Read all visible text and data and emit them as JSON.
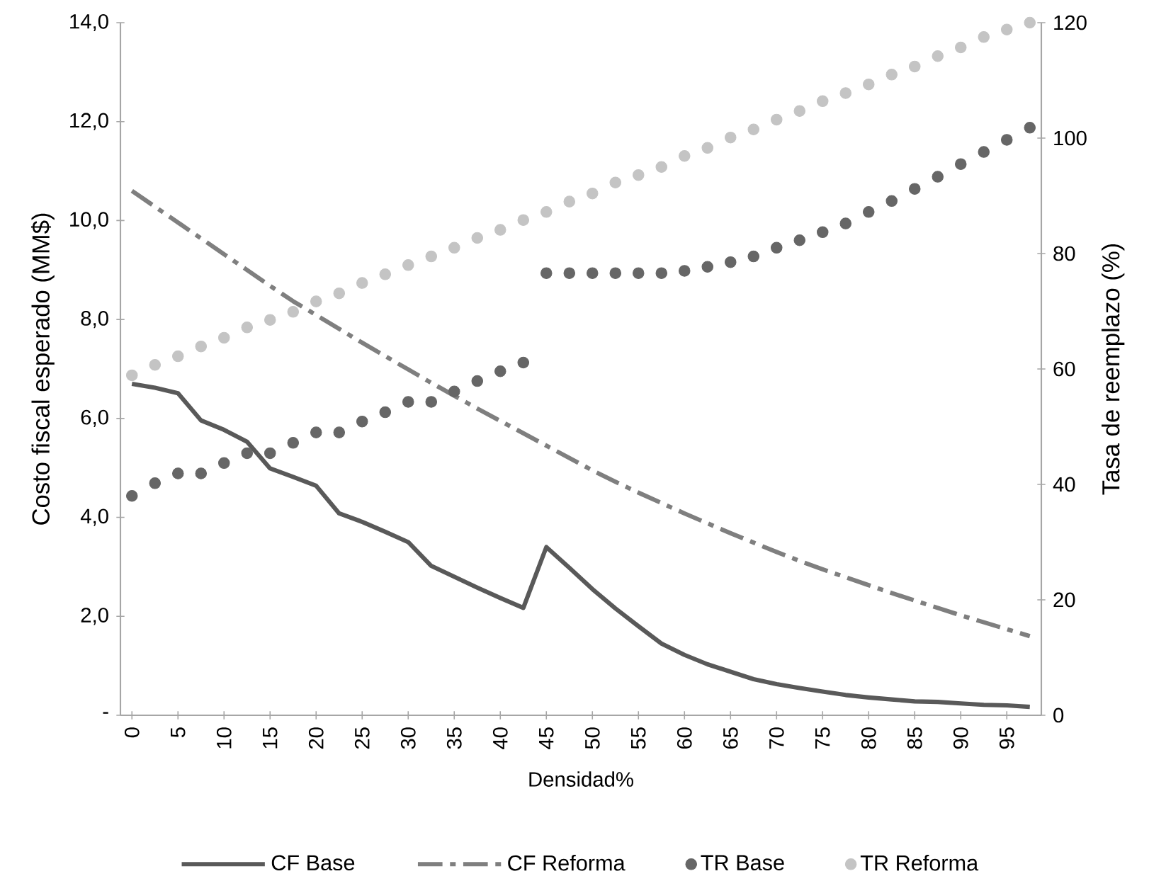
{
  "chart_data": {
    "type": "line",
    "xlabel": "Densidad%",
    "ylabel": "Costo fiscal esperado (MM$)",
    "y2label": "Tasa de reemplazo (%)",
    "x": [
      0,
      2.5,
      5,
      7.5,
      10,
      12.5,
      15,
      17.5,
      20,
      22.5,
      25,
      27.5,
      30,
      32.5,
      35,
      37.5,
      40,
      42.5,
      45,
      47.5,
      50,
      52.5,
      55,
      57.5,
      60,
      62.5,
      65,
      67.5,
      70,
      72.5,
      75,
      77.5,
      80,
      82.5,
      85,
      87.5,
      90,
      92.5,
      95,
      97.5
    ],
    "xlim": [
      -1.25,
      98.75
    ],
    "xticks": [
      0,
      5,
      10,
      15,
      20,
      25,
      30,
      35,
      40,
      45,
      50,
      55,
      60,
      65,
      70,
      75,
      80,
      85,
      90,
      95
    ],
    "ylim": [
      0,
      14
    ],
    "yticks": [
      {
        "value": 0,
        "label": "-"
      },
      {
        "value": 2,
        "label": "2,0"
      },
      {
        "value": 4,
        "label": "4,0"
      },
      {
        "value": 6,
        "label": "6,0"
      },
      {
        "value": 8,
        "label": "8,0"
      },
      {
        "value": 10,
        "label": "10,0"
      },
      {
        "value": 12,
        "label": "12,0"
      },
      {
        "value": 14,
        "label": "14,0"
      }
    ],
    "y2lim": [
      0,
      120
    ],
    "y2ticks": [
      0,
      20,
      40,
      60,
      80,
      100,
      120
    ],
    "legend": "bottom",
    "grid": false,
    "series": [
      {
        "name": "CF Base",
        "color": "#595959",
        "line_style": "solid",
        "marker": "none",
        "values": [
          6.7,
          6.62,
          6.51,
          5.96,
          5.77,
          5.53,
          4.99,
          4.82,
          4.64,
          4.08,
          3.91,
          3.71,
          3.5,
          3.02,
          2.8,
          2.58,
          2.37,
          2.17,
          3.4,
          2.98,
          2.55,
          2.16,
          1.8,
          1.45,
          1.22,
          1.03,
          0.88,
          0.73,
          0.63,
          0.55,
          0.48,
          0.41,
          0.36,
          0.32,
          0.28,
          0.27,
          0.24,
          0.21,
          0.2,
          0.17
        ]
      },
      {
        "name": "CF Reforma",
        "color": "#7f7f7f",
        "line_style": "dashdot",
        "marker": "none",
        "values": [
          10.6,
          10.28,
          9.96,
          9.64,
          9.32,
          9.0,
          8.68,
          8.37,
          8.09,
          7.81,
          7.53,
          7.26,
          6.99,
          6.72,
          6.46,
          6.2,
          5.95,
          5.7,
          5.45,
          5.2,
          4.95,
          4.72,
          4.5,
          4.29,
          4.08,
          3.88,
          3.68,
          3.49,
          3.3,
          3.12,
          2.95,
          2.79,
          2.63,
          2.47,
          2.32,
          2.17,
          2.02,
          1.88,
          1.74,
          1.6
        ]
      },
      {
        "name": "TR Base",
        "type": "scatter",
        "axis": "y2",
        "color": "#666666",
        "marker": "circle",
        "values": [
          38.0,
          40.2,
          41.9,
          41.9,
          43.7,
          45.4,
          45.4,
          47.2,
          49.0,
          49.0,
          50.9,
          52.5,
          54.3,
          54.3,
          56.1,
          57.9,
          59.6,
          61.1,
          76.6,
          76.6,
          76.6,
          76.6,
          76.6,
          76.6,
          77.0,
          77.7,
          78.5,
          79.5,
          81.0,
          82.3,
          83.7,
          85.2,
          87.2,
          89.1,
          91.2,
          93.3,
          95.5,
          97.6,
          99.7,
          101.8
        ]
      },
      {
        "name": "TR Reforma",
        "type": "scatter",
        "axis": "y2",
        "color": "#c4c4c4",
        "marker": "circle",
        "values": [
          58.9,
          60.7,
          62.2,
          63.9,
          65.4,
          67.2,
          68.5,
          69.9,
          71.7,
          73.1,
          74.9,
          76.4,
          78.0,
          79.5,
          81.0,
          82.7,
          84.1,
          85.8,
          87.2,
          89.0,
          90.4,
          92.3,
          93.6,
          95.0,
          96.9,
          98.3,
          100.1,
          101.5,
          103.2,
          104.7,
          106.4,
          107.8,
          109.3,
          111.0,
          112.4,
          114.2,
          115.7,
          117.5,
          118.8,
          120.0
        ]
      }
    ]
  }
}
